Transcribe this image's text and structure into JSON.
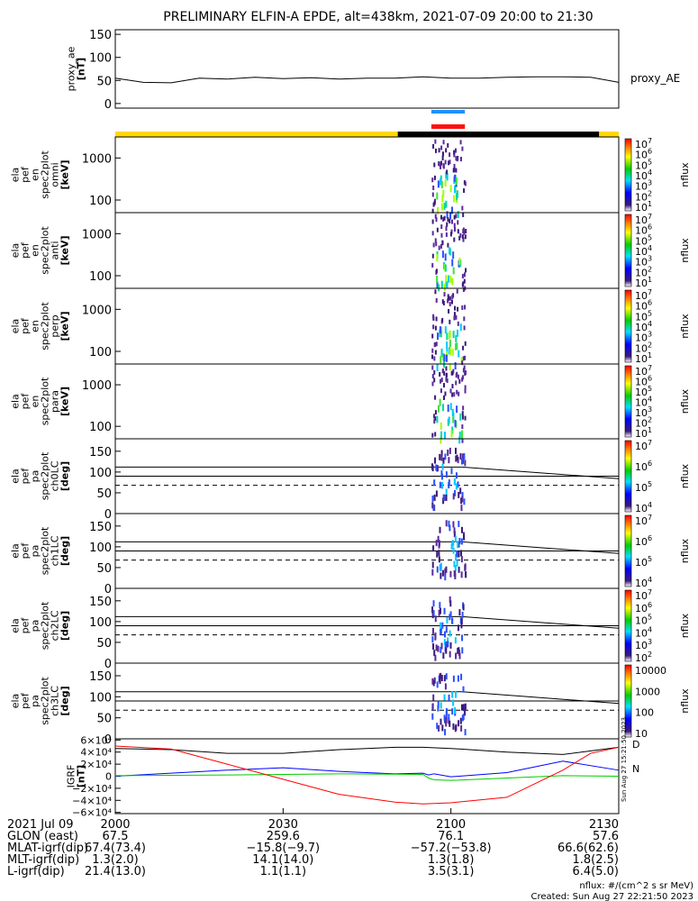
{
  "title": "PRELIMINARY ELFIN-A EPDE, alt=438km, 2021-07-09 20:00 to 21:30",
  "chart_data": [
    {
      "type": "line",
      "name": "proxy_ae",
      "ylabel": [
        "proxy_ae",
        "[nT]"
      ],
      "ylim": [
        -10,
        160
      ],
      "yticks": [
        "150",
        "100",
        "50",
        "0"
      ],
      "legend": "proxy_AE",
      "series": [
        {
          "name": "proxy_AE",
          "x_minutes": [
            0,
            5,
            10,
            15,
            20,
            25,
            30,
            35,
            40,
            45,
            50,
            55,
            60,
            65,
            70,
            75,
            80,
            85,
            90
          ],
          "values": [
            55,
            46,
            45,
            55,
            53,
            57,
            54,
            56,
            53,
            55,
            55,
            58,
            55,
            55,
            57,
            58,
            58,
            57,
            46
          ]
        }
      ]
    },
    {
      "type": "bar",
      "name": "status-bars",
      "blue_segment_min": [
        56.5,
        62.5
      ],
      "red_segment_min": [
        56.5,
        62.5
      ],
      "orbit_bar": [
        {
          "from": 0,
          "to": 50.5,
          "color": "#ffd800"
        },
        {
          "from": 50.5,
          "to": 86.5,
          "color": "#000000"
        },
        {
          "from": 86.5,
          "to": 90,
          "color": "#ffd800"
        }
      ]
    },
    {
      "type": "heatmap",
      "name": "ela-pef-en-spec2plot-omni",
      "ylabel": [
        "ela",
        "pef",
        "en",
        "spec2plot",
        "omni",
        "[keV]"
      ],
      "yscale": "log",
      "yticks": [
        "1000",
        "100"
      ],
      "colorbar": {
        "label": "nflux",
        "ticks": [
          "10",
          "10",
          "10",
          "10",
          "10",
          "10",
          "10"
        ],
        "exponents": [
          "7",
          "6",
          "5",
          "4",
          "3",
          "2",
          "1"
        ]
      },
      "active_minutes": [
        56.5,
        62.5
      ]
    },
    {
      "type": "heatmap",
      "name": "ela-pef-en-spec2plot-anti",
      "ylabel": [
        "ela",
        "pef",
        "en",
        "spec2plot",
        "anti",
        "[keV]"
      ],
      "yscale": "log",
      "yticks": [
        "1000",
        "100"
      ],
      "colorbar": {
        "label": "nflux",
        "ticks": [
          "10",
          "10",
          "10",
          "10",
          "10",
          "10",
          "10"
        ],
        "exponents": [
          "7",
          "6",
          "5",
          "4",
          "3",
          "2",
          "1"
        ]
      },
      "active_minutes": [
        56.5,
        62.5
      ]
    },
    {
      "type": "heatmap",
      "name": "ela-pef-en-spec2plot-perp",
      "ylabel": [
        "ela",
        "pef",
        "en",
        "spec2plot",
        "perp",
        "[keV]"
      ],
      "yscale": "log",
      "yticks": [
        "1000",
        "100"
      ],
      "colorbar": {
        "label": "nflux",
        "ticks": [
          "10",
          "10",
          "10",
          "10",
          "10",
          "10",
          "10"
        ],
        "exponents": [
          "7",
          "6",
          "5",
          "4",
          "3",
          "2",
          "1"
        ]
      },
      "active_minutes": [
        56.5,
        62.5
      ]
    },
    {
      "type": "heatmap",
      "name": "ela-pef-en-spec2plot-para",
      "ylabel": [
        "ela",
        "pef",
        "en",
        "spec2plot",
        "para",
        "[keV]"
      ],
      "yscale": "log",
      "yticks": [
        "1000",
        "100"
      ],
      "colorbar": {
        "label": "nflux",
        "ticks": [
          "10",
          "10",
          "10",
          "10",
          "10",
          "10",
          "10"
        ],
        "exponents": [
          "7",
          "6",
          "5",
          "4",
          "3",
          "2",
          "1"
        ]
      },
      "active_minutes": [
        56.5,
        62.5
      ]
    },
    {
      "type": "heatmap",
      "name": "ela-pef-pa-spec2plot-ch0LC",
      "ylabel": [
        "ela",
        "pef",
        "pa",
        "spec2plot",
        "ch0LC",
        "[deg]"
      ],
      "ylim": [
        0,
        180
      ],
      "yticks": [
        "150",
        "100",
        "50",
        "0"
      ],
      "colorbar": {
        "label": "nflux",
        "ticks": [
          "10",
          "10",
          "10",
          "10"
        ],
        "exponents": [
          "7",
          "6",
          "5",
          "4"
        ]
      },
      "active_minutes": [
        56.5,
        62.5
      ]
    },
    {
      "type": "heatmap",
      "name": "ela-pef-pa-spec2plot-ch1LC",
      "ylabel": [
        "ela",
        "pef",
        "pa",
        "spec2plot",
        "ch1LC",
        "[deg]"
      ],
      "ylim": [
        0,
        180
      ],
      "yticks": [
        "150",
        "100",
        "50",
        "0"
      ],
      "colorbar": {
        "label": "nflux",
        "ticks": [
          "10",
          "10",
          "10",
          "10"
        ],
        "exponents": [
          "7",
          "6",
          "5",
          "4"
        ]
      },
      "active_minutes": [
        56.5,
        62.5
      ]
    },
    {
      "type": "heatmap",
      "name": "ela-pef-pa-spec2plot-ch2LC",
      "ylabel": [
        "ela",
        "pef",
        "pa",
        "spec2plot",
        "ch2LC",
        "[deg]"
      ],
      "ylim": [
        0,
        180
      ],
      "yticks": [
        "150",
        "100",
        "50",
        "0"
      ],
      "colorbar": {
        "label": "nflux",
        "ticks": [
          "10",
          "10",
          "10",
          "10",
          "10",
          "10"
        ],
        "exponents": [
          "7",
          "6",
          "5",
          "4",
          "3",
          "2"
        ]
      },
      "active_minutes": [
        56.5,
        62.5
      ]
    },
    {
      "type": "heatmap",
      "name": "ela-pef-pa-spec2plot-ch3LC",
      "ylabel": [
        "ela",
        "pef",
        "pa",
        "spec2plot",
        "ch3LC",
        "[deg]"
      ],
      "ylim": [
        0,
        180
      ],
      "yticks": [
        "150",
        "100",
        "50",
        "0"
      ],
      "colorbar": {
        "label": "nflux",
        "ticks": [
          "10000",
          "1000",
          "100",
          "10"
        ]
      },
      "active_minutes": [
        56.5,
        62.5
      ]
    },
    {
      "type": "line",
      "name": "igrf",
      "ylabel": [
        "IGRF",
        "[nT]"
      ],
      "ylim": [
        -62000,
        62000
      ],
      "yticks": [
        "6×10⁴",
        "4×10⁴",
        "2×10⁴",
        "0",
        "−2×10⁴",
        "−4×10⁴",
        "−6×10⁴"
      ],
      "legend_labels": [
        "D",
        "N"
      ],
      "series": [
        {
          "name": "black",
          "color": "#000000",
          "x_minutes": [
            0,
            10,
            20,
            30,
            40,
            50,
            55,
            60,
            70,
            80,
            90
          ],
          "values": [
            46000,
            44000,
            38000,
            38000,
            44000,
            48000,
            48000,
            46000,
            40000,
            36000,
            48000
          ]
        },
        {
          "name": "blue",
          "color": "#0000ff",
          "x_minutes": [
            0,
            10,
            20,
            30,
            40,
            50,
            55,
            56,
            57,
            60,
            70,
            80,
            90
          ],
          "values": [
            0,
            5000,
            10000,
            14000,
            8000,
            4000,
            5000,
            2000,
            4000,
            -1000,
            6000,
            25000,
            10000
          ]
        },
        {
          "name": "green",
          "color": "#00cc00",
          "x_minutes": [
            0,
            20,
            40,
            55,
            56,
            57,
            60,
            80,
            90
          ],
          "values": [
            1000,
            2000,
            4000,
            3000,
            -3000,
            -6000,
            -7000,
            1000,
            0
          ]
        },
        {
          "name": "red",
          "color": "#ff0000",
          "x_minutes": [
            0,
            10,
            20,
            30,
            40,
            50,
            55,
            60,
            70,
            80,
            85,
            90
          ],
          "values": [
            50000,
            45000,
            20000,
            -5000,
            -30000,
            -43000,
            -46000,
            -44000,
            -35000,
            10000,
            38000,
            48000
          ]
        }
      ]
    }
  ],
  "xaxis": {
    "ticks": [
      "2000",
      "2030",
      "2100",
      "2130"
    ],
    "rows": [
      {
        "label": "2021 Jul 09",
        "values": [
          "2000",
          "2030",
          "2100",
          "2130"
        ]
      },
      {
        "label": "GLON (east)",
        "values": [
          "67.5",
          "259.6",
          "76.1",
          "57.6"
        ]
      },
      {
        "label": "MLAT-igrf(dip)",
        "values": [
          "67.4(73.4)",
          "−15.8(−9.7)",
          "−57.2(−53.8)",
          "66.6(62.6)"
        ]
      },
      {
        "label": "MLT-igrf(dip)",
        "values": [
          "1.3(2.0)",
          "14.1(14.0)",
          "1.3(1.8)",
          "1.8(2.5)"
        ]
      },
      {
        "label": "L-igrf(dip)",
        "values": [
          "21.4(13.0)",
          "1.1(1.1)",
          "3.5(3.1)",
          "6.4(5.0)"
        ]
      }
    ]
  },
  "footer": {
    "units": "nflux: #/(cm^2 s sr MeV)",
    "created": "Created: Sun Aug 27 22:21:50 2023",
    "side_stamp": "Sun Aug 27 15:21:50 2023"
  }
}
